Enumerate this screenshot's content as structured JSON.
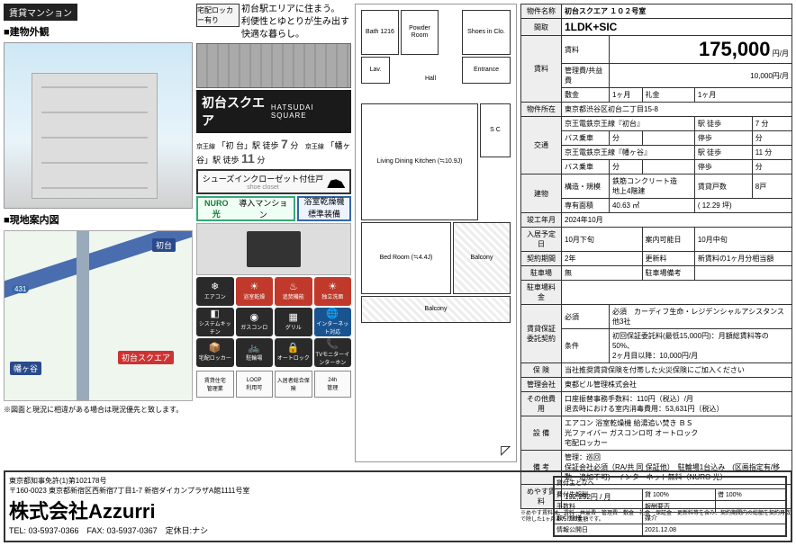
{
  "header": {
    "badge": "賃貸マンション",
    "exterior_title": "■建物外観",
    "map_title": "■現地案内図",
    "map_note": "※図面と現況に相違がある場合は現況優先と致します。"
  },
  "mid": {
    "locker_label": "宅配ロッカー有り",
    "tagline1": "初台駅エリアに住まう。",
    "tagline2": "利便性とゆとりが生み出す快適な暮らし。",
    "name_jp": "初台スクエア",
    "name_en": "HATSUDAI SQUARE",
    "station1_line": "京王線",
    "station1_name": "「初 台」駅 徒歩",
    "station1_min": "7",
    "station1_suf": "分",
    "station2_line": "京王線",
    "station2_name": "「幡ヶ谷」駅 徒歩",
    "station2_min": "11",
    "station2_suf": "分",
    "feature1": "シューズインクローゼット付住戸",
    "feature1_sub": "shoe closet",
    "feature2_pre": "NURO光",
    "feature2": "導入マンション",
    "feature3_a": "浴室乾燥機",
    "feature3_b": "標準装備"
  },
  "amenities": [
    {
      "icon": "❄",
      "label": "エアコン"
    },
    {
      "icon": "☀",
      "label": "浴室乾燥",
      "cls": "hot"
    },
    {
      "icon": "♨",
      "label": "追焚機能",
      "cls": "hot"
    },
    {
      "icon": "☀",
      "label": "独立洗面",
      "cls": "hot"
    },
    {
      "icon": "◧",
      "label": "システムキッチン"
    },
    {
      "icon": "◉",
      "label": "ガスコンロ"
    },
    {
      "icon": "▦",
      "label": "グリル"
    },
    {
      "icon": "🌐",
      "label": "インターネット対応",
      "cls": "net"
    },
    {
      "icon": "📦",
      "label": "宅配ロッカー"
    },
    {
      "icon": "🚲",
      "label": "駐輪場"
    },
    {
      "icon": "🔒",
      "label": "オートロック"
    },
    {
      "icon": "📞",
      "label": "TVモニターインターホン"
    }
  ],
  "certs": [
    {
      "label": "賃貸住宅\n管理業"
    },
    {
      "label": "LOOP\n利用可"
    },
    {
      "label": "入居者総合保険"
    },
    {
      "label": "24h\n管理"
    }
  ],
  "floorplan": {
    "bath": "Bath\n1216",
    "powder": "Powder\nRoom",
    "sic": "Shoes in\nClo.",
    "lav": "Lav.",
    "hall": "Hall",
    "entrance": "Entrance",
    "ldk": "Living Dining\nKitchen\n(≒10.9J)",
    "bed": "Bed Room\n(≒4.4J)",
    "balcony": "Balcony",
    "sc": "S\nC"
  },
  "spec": {
    "name_label": "物件名称",
    "name": "初台スクエア １０２号室",
    "type_label": "間取",
    "type": "1LDK+SIC",
    "rent_label": "賃料",
    "rent_head": "賃料",
    "rent": "175,000",
    "rent_unit": "円/月",
    "fee_label": "管理費/共益費",
    "fee": "10,000円/月",
    "cond_label": "賃貸条件",
    "deposit_l": "敷金",
    "deposit": "1ヶ月",
    "keymoney_l": "礼金",
    "keymoney": "1ヶ月",
    "addr_label": "物件所在",
    "addr": "東京都渋谷区初台二丁目15-8",
    "access_label": "交通",
    "line1": "京王電鉄京王線『初台』",
    "mode1": "駅 徒歩",
    "min1": "7 分",
    "bus1_l": "バス乗車",
    "bus1": "分",
    "stop1_l": "停歩",
    "stop1": "分",
    "line2": "京王電鉄京王線『幡ヶ谷』",
    "mode2": "駅 徒歩",
    "min2": "11 分",
    "bus2_l": "バス乗車",
    "bus2": "分",
    "stop2_l": "停歩",
    "stop2": "分",
    "struct_label": "建物",
    "struct_l": "構造・規模",
    "struct": "鉄筋コンクリート造\n地上4階建",
    "units_l": "賃貸戸数",
    "units": "8戸",
    "area_l": "専有面積",
    "area": "40.63 ㎡",
    "tsubo": "( 12.29 坪)",
    "built_l": "竣工年月",
    "built": "2024年10月",
    "movein_l": "入居予定日",
    "movein": "10月下旬",
    "avail_l": "案内可能日",
    "avail": "10月中旬",
    "term_l": "契約期間",
    "term": "2年",
    "renew_l": "更新料",
    "renew": "新賃料の1ヶ月分相当額",
    "park_l": "駐車場",
    "park": "無",
    "parkloc_l": "駐車場備考",
    "parkloc": "",
    "parkfee_l": "駐車場料金",
    "parkfee": "",
    "guar_label": "賃貸保証委託契約",
    "guar1_l": "必須",
    "guar1": "必須　カーディフ生命・レジデンシャルアシスタンス 他3社",
    "guar2": "初回保証委託料(最低15,000円)：月額総賃料等の50%、\n2ヶ月目以降：10,000円/月",
    "guar2_l": "条件",
    "ins_l": "保 険",
    "ins": "当社推奨賃貸保険を付帯した火災保険にご加入ください",
    "mgmt_l": "管理会社",
    "mgmt": "東都ビル管理株式会社",
    "other_l": "その他費用",
    "other": "口座振替事務手数料：110円（税込）/月\n退去時における室内消毒費用：53,631円（税込）",
    "equip_l": "設 備",
    "equip": "エアコン 浴室乾燥機 給湯追い焚き ＢＳ\n光ファイバー ガスコンロ可 オートロック\n宅配ロッカー",
    "note_l": "備 考",
    "note": "管理：巡回\n保証会社必須（RA/共 同 保証他）　駐輪場1台込み　(区画指定有/移動・追加不可)　インターネット無料（NURO 光）",
    "ref_l": "めやす賃料",
    "ref": "192,292円 / 月",
    "disclaimer": "※めやす賃料は、賃料・共益費・管理費・敷金・礼金・保証金・更新料等を含み、契約期間内の総額を契約月数で除した1ヶ月あたりの金額です。"
  },
  "map": {
    "st1": "初台",
    "st2": "幡ヶ谷",
    "prop": "初台スクエア",
    "road": "431"
  },
  "footer": {
    "license": "東京都知事免許(1)第102178号",
    "addr": "〒160-0023 東京都新宿区西新宿7丁目1-7 新宿ダイカンプラザA館1111号室",
    "company": "株式会社Azzurri",
    "tel": "TEL: 03-5937-0366　FAX: 03-5937-0367　定休日:ナシ",
    "box_title": "貸付主となへ",
    "r1a": "費付先報酬",
    "r1b": "貸 100%",
    "r1c": "借 100%",
    "r2a": "手数料",
    "r2b": "報酬要否",
    "r2c": "",
    "r3a": "取引態様",
    "r3b": "媒介",
    "r4a": "情報公開日",
    "r4b": "2021.12.08"
  }
}
